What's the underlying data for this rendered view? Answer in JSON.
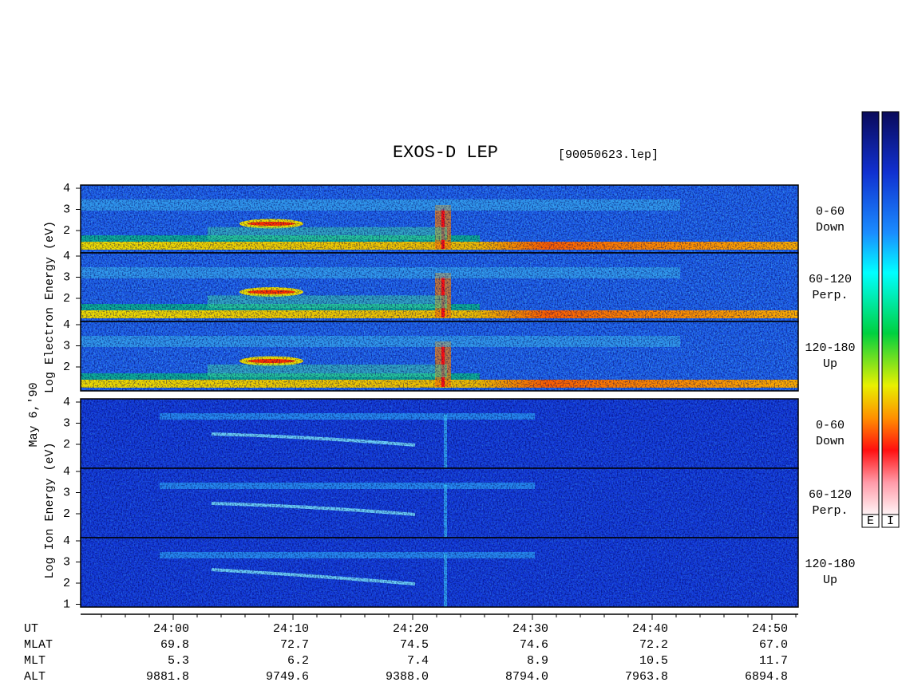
{
  "title": "EXOS-D LEP",
  "file": "[90050623.lep]",
  "date_label": "May 6,'90",
  "electron_axis_label": "Log Electron Energy (eV)",
  "ion_axis_label": "Log Ion Energy (eV)",
  "panels": [
    {
      "label": "0-60",
      "sublabel": "Down",
      "yticks": [
        4,
        3,
        2
      ]
    },
    {
      "label": "60-120",
      "sublabel": "Perp.",
      "yticks": [
        4,
        3,
        2
      ]
    },
    {
      "label": "120-180",
      "sublabel": "Up",
      "yticks": [
        4,
        3,
        2
      ]
    },
    {
      "label": "0-60",
      "sublabel": "Down",
      "yticks": [
        4,
        3,
        2
      ]
    },
    {
      "label": "60-120",
      "sublabel": "Perp.",
      "yticks": [
        4,
        3,
        2
      ]
    },
    {
      "label": "120-180",
      "sublabel": "Up",
      "yticks": [
        4,
        3,
        2,
        1
      ]
    }
  ],
  "colorbar_labels": [
    "E",
    "I"
  ],
  "rows": [
    {
      "name": "UT",
      "values": [
        "24:00",
        "24:10",
        "24:20",
        "24:30",
        "24:40",
        "24:50"
      ]
    },
    {
      "name": "MLAT",
      "values": [
        "69.8",
        "72.7",
        "74.5",
        "74.6",
        "72.2",
        "67.0"
      ]
    },
    {
      "name": "MLT",
      "values": [
        "5.3",
        "6.2",
        "7.4",
        "8.9",
        "10.5",
        "11.7"
      ]
    },
    {
      "name": "ALT",
      "values": [
        "9881.8",
        "9749.6",
        "9388.0",
        "8794.0",
        "7963.8",
        "6894.8"
      ]
    }
  ]
}
